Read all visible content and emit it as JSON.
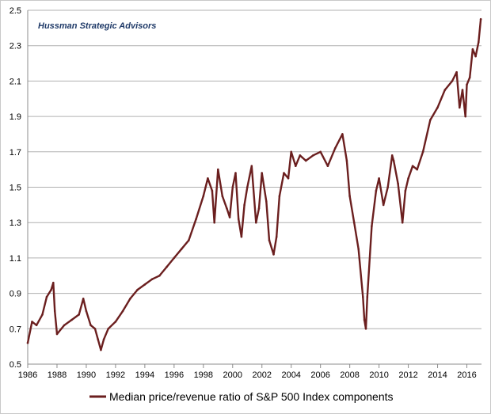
{
  "chart_data": {
    "type": "line",
    "title": "",
    "source": "Hussman Strategic Advisors",
    "xlabel": "",
    "ylabel": "",
    "xlim": [
      1986,
      2017
    ],
    "ylim": [
      0.5,
      2.5
    ],
    "x_ticks": [
      "1986",
      "1988",
      "1990",
      "1992",
      "1994",
      "1996",
      "1998",
      "2000",
      "2002",
      "2004",
      "2006",
      "2008",
      "2010",
      "2012",
      "2014",
      "2016"
    ],
    "y_ticks": [
      "0.5",
      "0.7",
      "0.9",
      "1.1",
      "1.3",
      "1.5",
      "1.7",
      "1.9",
      "2.1",
      "2.3",
      "2.5"
    ],
    "grid": "horizontal",
    "legend_position": "bottom",
    "series": [
      {
        "name": "Median price/revenue ratio of S&P 500 Index components",
        "color": "#6b1f1f",
        "x": [
          1986.0,
          1986.3,
          1986.6,
          1987.0,
          1987.3,
          1987.6,
          1987.75,
          1987.85,
          1988.0,
          1988.5,
          1989.0,
          1989.5,
          1989.8,
          1990.0,
          1990.3,
          1990.6,
          1990.8,
          1991.0,
          1991.2,
          1991.5,
          1992.0,
          1992.5,
          1993.0,
          1993.5,
          1994.0,
          1994.5,
          1995.0,
          1995.5,
          1996.0,
          1996.5,
          1997.0,
          1997.5,
          1998.0,
          1998.3,
          1998.6,
          1998.75,
          1999.0,
          1999.3,
          1999.6,
          1999.8,
          2000.0,
          2000.2,
          2000.4,
          2000.6,
          2000.8,
          2001.0,
          2001.3,
          2001.6,
          2001.8,
          2002.0,
          2002.3,
          2002.5,
          2002.8,
          2003.0,
          2003.2,
          2003.5,
          2003.8,
          2004.0,
          2004.3,
          2004.6,
          2005.0,
          2005.5,
          2006.0,
          2006.5,
          2007.0,
          2007.5,
          2007.8,
          2008.0,
          2008.3,
          2008.6,
          2008.9,
          2009.0,
          2009.1,
          2009.2,
          2009.5,
          2009.8,
          2010.0,
          2010.3,
          2010.6,
          2010.9,
          2011.0,
          2011.3,
          2011.6,
          2011.8,
          2012.0,
          2012.3,
          2012.6,
          2013.0,
          2013.5,
          2014.0,
          2014.5,
          2015.0,
          2015.3,
          2015.5,
          2015.7,
          2015.9,
          2016.0,
          2016.2,
          2016.4,
          2016.6,
          2016.8,
          2016.95
        ],
        "values": [
          0.62,
          0.74,
          0.72,
          0.78,
          0.88,
          0.92,
          0.96,
          0.8,
          0.67,
          0.72,
          0.75,
          0.78,
          0.87,
          0.8,
          0.72,
          0.7,
          0.64,
          0.58,
          0.64,
          0.7,
          0.74,
          0.8,
          0.87,
          0.92,
          0.95,
          0.98,
          1.0,
          1.05,
          1.1,
          1.15,
          1.2,
          1.32,
          1.45,
          1.55,
          1.48,
          1.3,
          1.6,
          1.45,
          1.38,
          1.33,
          1.5,
          1.58,
          1.32,
          1.22,
          1.4,
          1.5,
          1.62,
          1.3,
          1.38,
          1.58,
          1.42,
          1.2,
          1.12,
          1.22,
          1.45,
          1.58,
          1.55,
          1.7,
          1.62,
          1.68,
          1.65,
          1.68,
          1.7,
          1.62,
          1.72,
          1.8,
          1.65,
          1.45,
          1.3,
          1.15,
          0.88,
          0.75,
          0.7,
          0.88,
          1.28,
          1.48,
          1.55,
          1.4,
          1.5,
          1.68,
          1.65,
          1.52,
          1.3,
          1.48,
          1.55,
          1.62,
          1.6,
          1.7,
          1.88,
          1.95,
          2.05,
          2.1,
          2.15,
          1.95,
          2.05,
          1.9,
          2.08,
          2.12,
          2.28,
          2.24,
          2.32,
          2.45
        ]
      }
    ]
  }
}
